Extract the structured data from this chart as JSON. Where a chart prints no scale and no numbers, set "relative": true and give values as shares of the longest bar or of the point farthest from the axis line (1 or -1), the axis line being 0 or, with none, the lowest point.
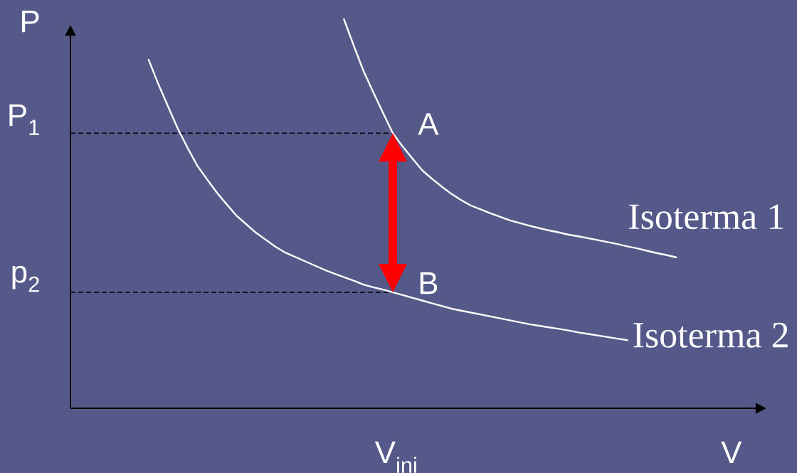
{
  "chart_data": {
    "type": "line",
    "relative": true,
    "xlabel": "V",
    "ylabel": "P",
    "marker": "none",
    "categories": [
      null,
      null,
      null,
      null,
      null,
      null,
      null,
      null,
      null,
      null,
      null,
      null,
      null,
      null,
      null,
      null,
      null,
      null,
      null,
      null,
      null,
      null,
      null,
      null,
      null,
      null,
      null,
      null,
      null,
      null,
      null,
      null,
      null,
      null,
      null,
      null,
      null,
      null,
      null,
      null,
      null,
      null,
      null,
      null,
      null,
      null,
      null,
      null,
      null,
      null,
      null,
      null,
      null,
      null,
      null,
      null,
      null,
      null,
      null,
      null,
      null,
      null,
      null
    ],
    "series": [
      {
        "name": "Isoterma 1",
        "color": "#ffffff",
        "values": [
          null,
          null,
          null,
          null,
          null,
          null,
          null,
          null,
          null,
          null,
          null,
          null,
          null,
          null,
          null,
          null,
          null,
          null,
          null,
          null,
          null,
          null,
          null,
          null,
          null,
          null,
          null,
          null,
          1.0,
          0.932,
          0.867,
          0.812,
          0.759,
          0.707,
          0.673,
          0.642,
          0.612,
          0.59,
          0.57,
          0.551,
          0.535,
          0.521,
          0.511,
          0.501,
          0.492,
          0.483,
          0.476,
          0.469,
          0.463,
          0.457,
          0.452,
          0.446,
          0.442,
          0.437,
          0.432,
          0.427,
          0.422,
          0.416,
          0.411,
          0.405,
          0.399,
          0.394,
          0.388
        ]
      },
      {
        "name": "Isoterma 2",
        "color": "#ffffff",
        "values": [
          null,
          null,
          null,
          null,
          null,
          null,
          null,
          null,
          0.896,
          0.833,
          0.775,
          0.718,
          0.669,
          0.623,
          0.588,
          0.554,
          0.524,
          0.495,
          0.473,
          0.451,
          0.433,
          0.415,
          0.4,
          0.389,
          0.378,
          0.367,
          0.356,
          0.346,
          0.337,
          0.328,
          0.318,
          0.311,
          0.305,
          0.298,
          0.291,
          0.284,
          0.277,
          0.27,
          0.263,
          0.256,
          0.251,
          0.246,
          0.241,
          0.236,
          0.231,
          0.226,
          0.221,
          0.216,
          0.212,
          0.208,
          0.204,
          0.2,
          0.195,
          0.191,
          0.187,
          0.183,
          0.179,
          0.175,
          null,
          null,
          null,
          null,
          null
        ]
      }
    ],
    "ref_lines": [
      {
        "axis": "y",
        "value": 0.707,
        "label": "P$_{1}$",
        "color": "#000000",
        "line_style": "dashed"
      },
      {
        "axis": "y",
        "value": 0.298,
        "label": "p$_{2}$",
        "color": "#000000",
        "line_style": "dashed"
      }
    ],
    "annotations": [
      "A",
      "B",
      "V$_{ini}$"
    ]
  }
}
